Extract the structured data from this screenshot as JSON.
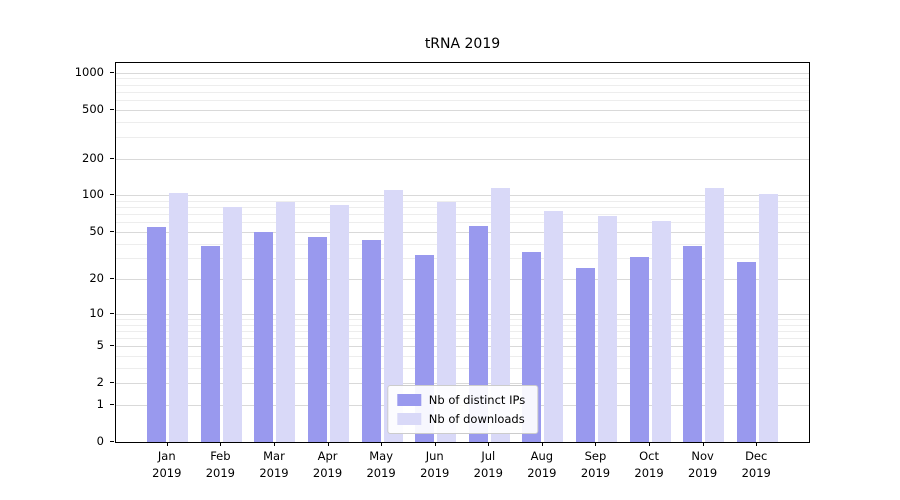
{
  "chart_data": {
    "type": "bar",
    "title": "tRNA 2019",
    "yscale": "log1p",
    "grid": true,
    "legend_position": "lower center",
    "categories": [
      "Jan",
      "Feb",
      "Mar",
      "Apr",
      "May",
      "Jun",
      "Jul",
      "Aug",
      "Sep",
      "Oct",
      "Nov",
      "Dec"
    ],
    "category_year": "2019",
    "yticks": [
      0,
      1,
      2,
      5,
      10,
      20,
      50,
      100,
      200,
      500,
      1000
    ],
    "ylim": [
      0,
      1200
    ],
    "series": [
      {
        "name": "Nb of distinct IPs",
        "color": "#9999ee",
        "values": [
          55,
          38,
          50,
          45,
          43,
          32,
          56,
          34,
          25,
          31,
          38,
          28
        ]
      },
      {
        "name": "Nb of downloads",
        "color": "#d9d9f8",
        "values": [
          105,
          80,
          88,
          84,
          110,
          88,
          115,
          75,
          67,
          62,
          115,
          103
        ]
      }
    ]
  }
}
